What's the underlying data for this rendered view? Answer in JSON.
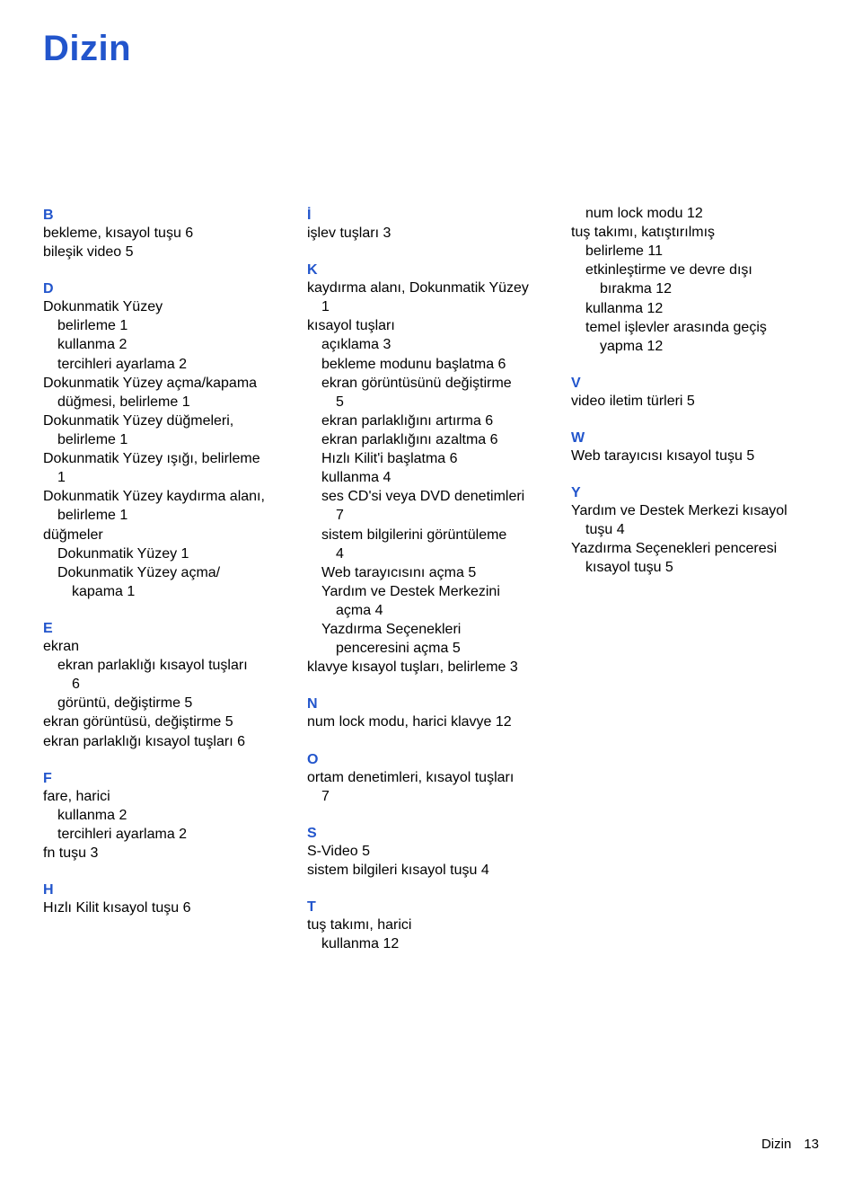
{
  "title": "Dizin",
  "footer_label": "Dizin",
  "footer_page": "13",
  "colors": {
    "accent": "#2255cc",
    "text": "#000000",
    "bg": "#ffffff"
  },
  "col1": [
    {
      "type": "letter",
      "t": "B"
    },
    {
      "type": "e",
      "lvl": 0,
      "t": "bekleme, kısayol tuşu   6"
    },
    {
      "type": "e",
      "lvl": 0,
      "t": "bileşik video   5"
    },
    {
      "type": "spacer"
    },
    {
      "type": "letter",
      "t": "D"
    },
    {
      "type": "e",
      "lvl": 0,
      "t": "Dokunmatik Yüzey"
    },
    {
      "type": "e",
      "lvl": 1,
      "t": "belirleme   1"
    },
    {
      "type": "e",
      "lvl": 1,
      "t": "kullanma   2"
    },
    {
      "type": "e",
      "lvl": 1,
      "t": "tercihleri ayarlama   2"
    },
    {
      "type": "e",
      "lvl": 0,
      "t": "Dokunmatik Yüzey açma/kapama"
    },
    {
      "type": "e",
      "lvl": 1,
      "t": "düğmesi, belirleme   1"
    },
    {
      "type": "e",
      "lvl": 0,
      "t": "Dokunmatik Yüzey düğmeleri,"
    },
    {
      "type": "e",
      "lvl": 1,
      "t": "belirleme   1"
    },
    {
      "type": "e",
      "lvl": 0,
      "t": "Dokunmatik Yüzey ışığı, belirleme"
    },
    {
      "type": "e",
      "lvl": 1,
      "t": "1"
    },
    {
      "type": "e",
      "lvl": 0,
      "t": "Dokunmatik Yüzey kaydırma alanı,"
    },
    {
      "type": "e",
      "lvl": 1,
      "t": "belirleme   1"
    },
    {
      "type": "e",
      "lvl": 0,
      "t": "düğmeler"
    },
    {
      "type": "e",
      "lvl": 1,
      "t": "Dokunmatik Yüzey   1"
    },
    {
      "type": "e",
      "lvl": 1,
      "t": "Dokunmatik Yüzey açma/"
    },
    {
      "type": "e",
      "lvl": 2,
      "t": "kapama   1"
    },
    {
      "type": "spacer"
    },
    {
      "type": "letter",
      "t": "E"
    },
    {
      "type": "e",
      "lvl": 0,
      "t": "ekran"
    },
    {
      "type": "e",
      "lvl": 1,
      "t": "ekran parlaklığı kısayol tuşları"
    },
    {
      "type": "e",
      "lvl": 2,
      "t": "6"
    },
    {
      "type": "e",
      "lvl": 1,
      "t": "görüntü, değiştirme   5"
    },
    {
      "type": "e",
      "lvl": 0,
      "t": "ekran görüntüsü, değiştirme   5"
    },
    {
      "type": "e",
      "lvl": 0,
      "t": "ekran parlaklığı kısayol tuşları   6"
    },
    {
      "type": "spacer"
    },
    {
      "type": "letter",
      "t": "F"
    },
    {
      "type": "e",
      "lvl": 0,
      "t": "fare, harici"
    },
    {
      "type": "e",
      "lvl": 1,
      "t": "kullanma   2"
    },
    {
      "type": "e",
      "lvl": 1,
      "t": "tercihleri ayarlama   2"
    },
    {
      "type": "e",
      "lvl": 0,
      "t": "fn tuşu   3"
    },
    {
      "type": "spacer"
    },
    {
      "type": "letter",
      "t": "H"
    },
    {
      "type": "e",
      "lvl": 0,
      "t": "Hızlı Kilit kısayol tuşu   6"
    }
  ],
  "col2": [
    {
      "type": "letter",
      "t": "İ"
    },
    {
      "type": "e",
      "lvl": 0,
      "t": "işlev tuşları   3"
    },
    {
      "type": "spacer"
    },
    {
      "type": "letter",
      "t": "K"
    },
    {
      "type": "e",
      "lvl": 0,
      "t": "kaydırma alanı, Dokunmatik Yüzey"
    },
    {
      "type": "e",
      "lvl": 1,
      "t": "1"
    },
    {
      "type": "e",
      "lvl": 0,
      "t": "kısayol tuşları"
    },
    {
      "type": "e",
      "lvl": 1,
      "t": "açıklama   3"
    },
    {
      "type": "e",
      "lvl": 1,
      "t": "bekleme modunu başlatma   6"
    },
    {
      "type": "e",
      "lvl": 1,
      "t": "ekran görüntüsünü değiştirme"
    },
    {
      "type": "e",
      "lvl": 2,
      "t": "5"
    },
    {
      "type": "e",
      "lvl": 1,
      "t": "ekran parlaklığını artırma   6"
    },
    {
      "type": "e",
      "lvl": 1,
      "t": "ekran parlaklığını azaltma   6"
    },
    {
      "type": "e",
      "lvl": 1,
      "t": "Hızlı Kilit'i başlatma   6"
    },
    {
      "type": "e",
      "lvl": 1,
      "t": "kullanma   4"
    },
    {
      "type": "e",
      "lvl": 1,
      "t": "ses CD'si veya DVD denetimleri"
    },
    {
      "type": "e",
      "lvl": 2,
      "t": "7"
    },
    {
      "type": "e",
      "lvl": 1,
      "t": "sistem bilgilerini görüntüleme"
    },
    {
      "type": "e",
      "lvl": 2,
      "t": "4"
    },
    {
      "type": "e",
      "lvl": 1,
      "t": "Web tarayıcısını açma   5"
    },
    {
      "type": "e",
      "lvl": 1,
      "t": "Yardım ve Destek Merkezini"
    },
    {
      "type": "e",
      "lvl": 2,
      "t": "açma   4"
    },
    {
      "type": "e",
      "lvl": 1,
      "t": "Yazdırma Seçenekleri"
    },
    {
      "type": "e",
      "lvl": 2,
      "t": "penceresini açma   5"
    },
    {
      "type": "e",
      "lvl": 0,
      "t": "klavye kısayol tuşları, belirleme   3"
    },
    {
      "type": "spacer"
    },
    {
      "type": "letter",
      "t": "N"
    },
    {
      "type": "e",
      "lvl": 0,
      "t": "num lock modu, harici klavye   12"
    },
    {
      "type": "spacer"
    },
    {
      "type": "letter",
      "t": "O"
    },
    {
      "type": "e",
      "lvl": 0,
      "t": "ortam denetimleri, kısayol tuşları"
    },
    {
      "type": "e",
      "lvl": 1,
      "t": "7"
    },
    {
      "type": "spacer"
    },
    {
      "type": "letter",
      "t": "S"
    },
    {
      "type": "e",
      "lvl": 0,
      "t": "S-Video   5"
    },
    {
      "type": "e",
      "lvl": 0,
      "t": "sistem bilgileri kısayol tuşu   4"
    },
    {
      "type": "spacer"
    },
    {
      "type": "letter",
      "t": "T"
    },
    {
      "type": "e",
      "lvl": 0,
      "t": "tuş takımı, harici"
    },
    {
      "type": "e",
      "lvl": 1,
      "t": "kullanma   12"
    }
  ],
  "col3": [
    {
      "type": "e",
      "lvl": 1,
      "t": "num lock modu   12"
    },
    {
      "type": "e",
      "lvl": 0,
      "t": "tuş takımı, katıştırılmış"
    },
    {
      "type": "e",
      "lvl": 1,
      "t": "belirleme   11"
    },
    {
      "type": "e",
      "lvl": 1,
      "t": "etkinleştirme ve devre dışı"
    },
    {
      "type": "e",
      "lvl": 2,
      "t": "bırakma   12"
    },
    {
      "type": "e",
      "lvl": 1,
      "t": "kullanma   12"
    },
    {
      "type": "e",
      "lvl": 1,
      "t": "temel işlevler arasında geçiş"
    },
    {
      "type": "e",
      "lvl": 2,
      "t": "yapma   12"
    },
    {
      "type": "spacer"
    },
    {
      "type": "letter",
      "t": "V"
    },
    {
      "type": "e",
      "lvl": 0,
      "t": "video iletim türleri   5"
    },
    {
      "type": "spacer"
    },
    {
      "type": "letter",
      "t": "W"
    },
    {
      "type": "e",
      "lvl": 0,
      "t": "Web tarayıcısı kısayol tuşu   5"
    },
    {
      "type": "spacer"
    },
    {
      "type": "letter",
      "t": "Y"
    },
    {
      "type": "e",
      "lvl": 0,
      "t": "Yardım ve Destek Merkezi kısayol"
    },
    {
      "type": "e",
      "lvl": 1,
      "t": "tuşu   4"
    },
    {
      "type": "e",
      "lvl": 0,
      "t": "Yazdırma Seçenekleri penceresi"
    },
    {
      "type": "e",
      "lvl": 1,
      "t": "kısayol tuşu   5"
    }
  ]
}
